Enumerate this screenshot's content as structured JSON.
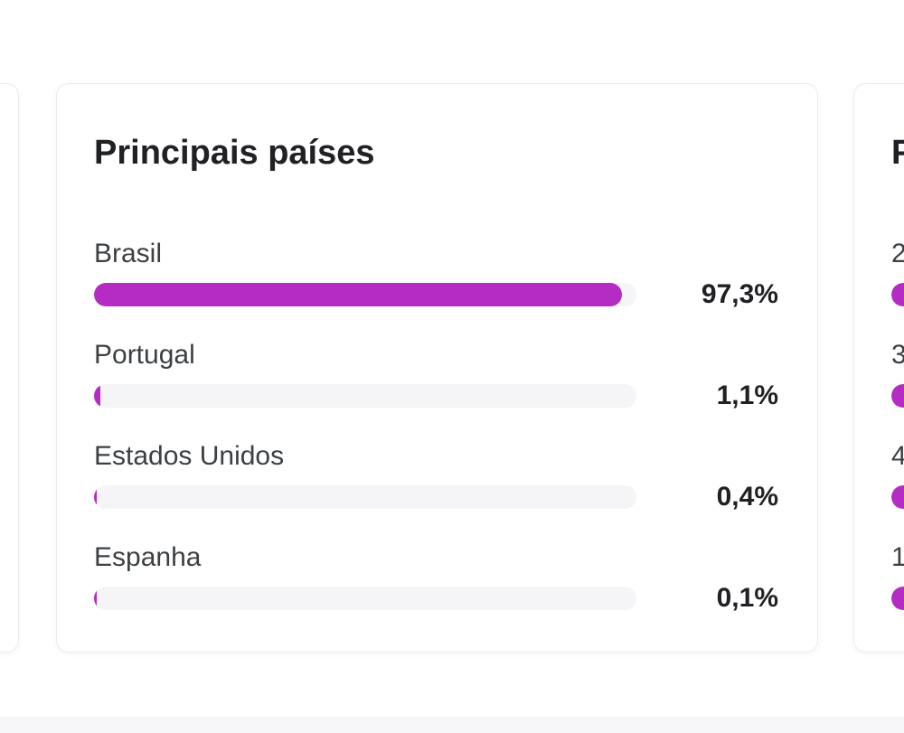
{
  "cards": {
    "countries": {
      "title": "Principais países",
      "items": [
        {
          "label": "Brasil",
          "value": 97.3,
          "value_label": "97,3%"
        },
        {
          "label": "Portugal",
          "value": 1.1,
          "value_label": "1,1%"
        },
        {
          "label": "Estados Unidos",
          "value": 0.4,
          "value_label": "0,4%"
        },
        {
          "label": "Espanha",
          "value": 0.1,
          "value_label": "0,1%"
        }
      ]
    },
    "next_card_partial": {
      "title_visible": "P",
      "items": [
        {
          "label_visible": "2"
        },
        {
          "label_visible": "3"
        },
        {
          "label_visible": "4"
        },
        {
          "label_visible": "1"
        }
      ]
    }
  },
  "colors": {
    "bar_fill": "#b52cc4",
    "bar_track": "#f5f4f6",
    "card_border": "#eceaee",
    "bottom_strip": "#f7f6f9",
    "title_text": "#202124",
    "label_text": "#3c4043"
  },
  "chart_data": {
    "type": "bar",
    "orientation": "horizontal",
    "title": "Principais países",
    "categories": [
      "Brasil",
      "Portugal",
      "Estados Unidos",
      "Espanha"
    ],
    "values": [
      97.3,
      1.1,
      0.4,
      0.1
    ],
    "value_labels": [
      "97,3%",
      "1,1%",
      "0,4%",
      "0,1%"
    ],
    "unit": "%",
    "xlim": [
      0,
      100
    ],
    "grid": false,
    "legend": false,
    "bar_color": "#b52cc4",
    "track_color": "#f5f4f6"
  }
}
